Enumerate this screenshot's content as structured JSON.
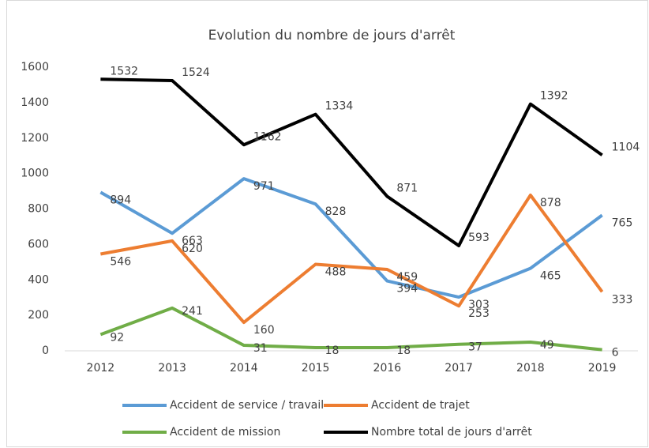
{
  "chart_data": {
    "type": "line",
    "title": "Evolution du nombre de jours d'arrêt",
    "categories": [
      "2012",
      "2013",
      "2014",
      "2015",
      "2016",
      "2017",
      "2018",
      "2019"
    ],
    "series": [
      {
        "name": "Accident de service / travail",
        "color": "#5b9bd5",
        "values": [
          894,
          663,
          971,
          828,
          394,
          303,
          465,
          765
        ]
      },
      {
        "name": "Accident de trajet",
        "color": "#ed7d31",
        "values": [
          546,
          620,
          160,
          488,
          459,
          253,
          878,
          333
        ]
      },
      {
        "name": "Accident de mission",
        "color": "#70ad47",
        "values": [
          92,
          241,
          31,
          18,
          18,
          37,
          49,
          6
        ]
      },
      {
        "name": "Nombre total de jours d'arrêt",
        "color": "#000000",
        "values": [
          1532,
          1524,
          1162,
          1334,
          871,
          593,
          1392,
          1104
        ]
      }
    ],
    "ylim": [
      0,
      1600
    ],
    "yticks": [
      0,
      200,
      400,
      600,
      800,
      1000,
      1200,
      1400,
      1600
    ],
    "grid": false,
    "legend": "bottom"
  }
}
